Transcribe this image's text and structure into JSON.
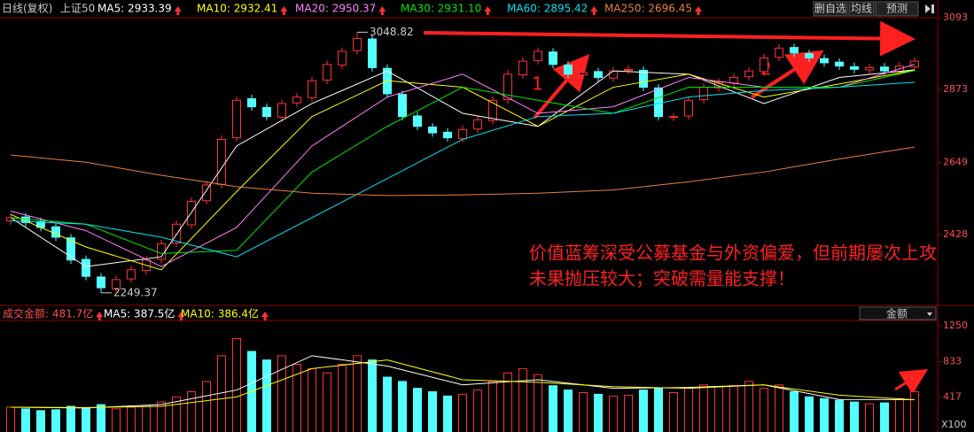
{
  "header": {
    "period": "日线(复权)",
    "symbol": "上证50"
  },
  "toolbar": [
    "删自选",
    "均线",
    "预测"
  ],
  "chart_data": {
    "type": "candlestick",
    "up_color": "#ff3232",
    "down_color": "#54ffff",
    "open": [
      2470,
      2482,
      2468,
      2452,
      2418,
      2352,
      2298,
      2262,
      2292,
      2318,
      2352,
      2402,
      2458,
      2532,
      2582,
      2725,
      2845,
      2818,
      2788,
      2832,
      2848,
      2902,
      2948,
      2992,
      3028,
      2938,
      2858,
      2792,
      2758,
      2742,
      2722,
      2752,
      2778,
      2842,
      2918,
      2962,
      2988,
      2948,
      2918,
      2928,
      2908,
      2932,
      2932,
      2878,
      2788,
      2792,
      2842,
      2878,
      2893,
      2912,
      2928,
      2972,
      3002,
      2983,
      2968,
      2957,
      2943,
      2933,
      2942,
      2928,
      2943
    ],
    "high": [
      2492,
      2494,
      2480,
      2464,
      2430,
      2364,
      2310,
      2302,
      2332,
      2362,
      2412,
      2472,
      2542,
      2592,
      2732,
      2852,
      2857,
      2830,
      2842,
      2862,
      2912,
      2962,
      3002,
      3048.82,
      3040,
      2950,
      2870,
      2804,
      2770,
      2754,
      2762,
      2792,
      2852,
      2932,
      2972,
      3002,
      3000,
      2960,
      2937,
      2940,
      2942,
      2947,
      2944,
      2890,
      2800,
      2852,
      2892,
      2907,
      2922,
      2942,
      2982,
      3012,
      3014,
      2995,
      2980,
      2969,
      2955,
      2952,
      2954,
      2957,
      2972
    ],
    "low": [
      2458,
      2453,
      2438,
      2408,
      2338,
      2288,
      2249.37,
      2250,
      2280,
      2306,
      2340,
      2390,
      2446,
      2520,
      2570,
      2713,
      2808,
      2778,
      2776,
      2820,
      2836,
      2890,
      2936,
      2980,
      2928,
      2848,
      2778,
      2748,
      2728,
      2713,
      2710,
      2740,
      2766,
      2830,
      2906,
      2950,
      2938,
      2908,
      2906,
      2898,
      2896,
      2920,
      2868,
      2778,
      2776,
      2780,
      2830,
      2866,
      2881,
      2900,
      2916,
      2960,
      2973,
      2958,
      2943,
      2933,
      2923,
      2921,
      2918,
      2916,
      2931
    ],
    "close": [
      2480,
      2465,
      2450,
      2420,
      2350,
      2300,
      2265,
      2290,
      2320,
      2350,
      2400,
      2460,
      2530,
      2580,
      2720,
      2840,
      2820,
      2790,
      2830,
      2850,
      2900,
      2950,
      2990,
      3030,
      2940,
      2860,
      2790,
      2760,
      2740,
      2725,
      2750,
      2780,
      2840,
      2920,
      2960,
      2990,
      2950,
      2920,
      2925,
      2910,
      2930,
      2935,
      2880,
      2790,
      2790,
      2840,
      2880,
      2895,
      2910,
      2930,
      2970,
      3000,
      2985,
      2970,
      2955,
      2945,
      2935,
      2940,
      2930,
      2945,
      2960
    ],
    "ylim": [
      2219,
      3115
    ],
    "yticks": [
      3093,
      2873,
      2649,
      2428
    ],
    "moving_averages": {
      "x": [
        0,
        5,
        10,
        15,
        20,
        25,
        30,
        35,
        40,
        45,
        50,
        55,
        60
      ],
      "series": [
        {
          "name": "MA5: 2933.39",
          "color": "#ffffff",
          "values": [
            2480,
            2330,
            2360,
            2700,
            2830,
            2930,
            2800,
            2760,
            2930,
            2920,
            2830,
            2910,
            2933.39
          ]
        },
        {
          "name": "MA10: 2932.41",
          "color": "#ffff00",
          "values": [
            2490,
            2390,
            2320,
            2560,
            2790,
            2900,
            2880,
            2760,
            2880,
            2920,
            2850,
            2890,
            2932.41
          ]
        },
        {
          "name": "MA20: 2950.37",
          "color": "#ff80ff",
          "values": [
            2500,
            2440,
            2330,
            2450,
            2700,
            2850,
            2920,
            2800,
            2820,
            2910,
            2880,
            2880,
            2950.37
          ]
        },
        {
          "name": "MA30: 2931.10",
          "color": "#00e600",
          "values": [
            2480,
            2460,
            2370,
            2380,
            2620,
            2760,
            2880,
            2840,
            2800,
            2880,
            2880,
            2880,
            2931.1
          ]
        },
        {
          "name": "MA60: 2895.42",
          "color": "#02e2f4",
          "values": [
            2470,
            2460,
            2420,
            2360,
            2480,
            2600,
            2720,
            2790,
            2800,
            2850,
            2870,
            2880,
            2895.42
          ]
        },
        {
          "name": "MA250: 2696.45",
          "color": "#e8803a",
          "values": [
            2672,
            2650,
            2610,
            2575,
            2555,
            2548,
            2550,
            2555,
            2565,
            2590,
            2620,
            2660,
            2696.45
          ]
        }
      ]
    },
    "annotations": [
      "1",
      "2"
    ],
    "note": [
      "价值蓝筹深受公募基金与外资偏爱，但前期屡次上攻",
      "未果抛压较大；突破需量能支撑！"
    ],
    "volume": {
      "type": "bar",
      "title": "成交金额: 481.7亿",
      "values": [
        300,
        280,
        260,
        270,
        310,
        290,
        330,
        280,
        300,
        320,
        360,
        420,
        480,
        600,
        900,
        1100,
        950,
        850,
        900,
        800,
        750,
        700,
        800,
        900,
        850,
        650,
        600,
        520,
        480,
        430,
        450,
        500,
        600,
        700,
        750,
        680,
        550,
        500,
        470,
        450,
        430,
        440,
        500,
        520,
        470,
        520,
        560,
        540,
        550,
        600,
        520,
        560,
        480,
        420,
        400,
        380,
        360,
        340,
        350,
        400,
        481.7
      ],
      "ylim": [
        0,
        1332
      ],
      "yticks": [
        1250,
        833,
        417
      ],
      "unit_label": "X100",
      "selector": "金额",
      "moving_averages": {
        "x": [
          0,
          5,
          10,
          15,
          20,
          25,
          30,
          35,
          40,
          45,
          50,
          55,
          60
        ],
        "series": [
          {
            "name": "MA5: 387.5亿",
            "color": "#ffffff",
            "values": [
              300,
              290,
              330,
              500,
              900,
              780,
              560,
              620,
              520,
              530,
              560,
              390,
              387.5
            ]
          },
          {
            "name": "MA10: 386.4亿",
            "color": "#ffff00",
            "values": [
              300,
              295,
              310,
              420,
              750,
              850,
              620,
              590,
              540,
              520,
              560,
              440,
              386.4
            ]
          }
        ]
      }
    }
  }
}
